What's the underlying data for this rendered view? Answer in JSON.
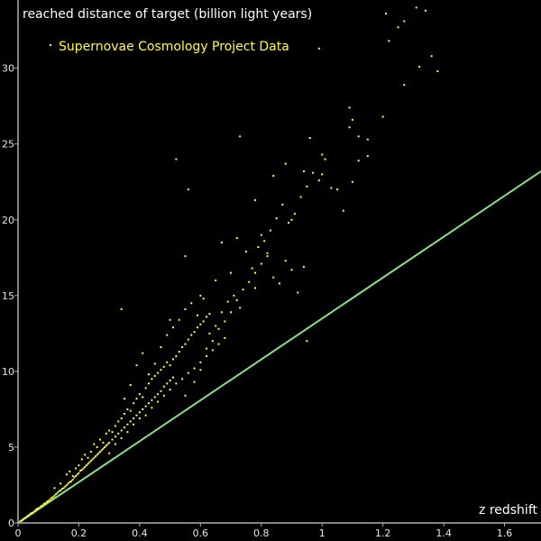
{
  "chart_data": {
    "type": "scatter",
    "title": "",
    "ylabel": "reached distance of target (billion light years)",
    "xlabel": "z redshift",
    "xlim": [
      0,
      1.72
    ],
    "ylim": [
      0,
      34.5
    ],
    "xticks": [
      0,
      0.2,
      0.4,
      0.6,
      0.8,
      1,
      1.2,
      1.4,
      1.6
    ],
    "yticks": [
      0,
      5,
      10,
      15,
      20,
      25,
      30
    ],
    "legend": {
      "text": "Supernovae Cosmology Project Data",
      "placement": "top-left"
    },
    "colors": {
      "points": "#ffff33",
      "reference_line": "#88e088",
      "axis": "#b0b0b0",
      "background": "#000000"
    },
    "series": [
      {
        "name": "Supernovae Cosmology Project Data",
        "kind": "points",
        "points": [
          [
            0.01,
            0.15
          ],
          [
            0.015,
            0.2
          ],
          [
            0.02,
            0.3
          ],
          [
            0.025,
            0.35
          ],
          [
            0.03,
            0.45
          ],
          [
            0.035,
            0.5
          ],
          [
            0.04,
            0.6
          ],
          [
            0.045,
            0.65
          ],
          [
            0.05,
            0.7
          ],
          [
            0.055,
            0.8
          ],
          [
            0.06,
            0.9
          ],
          [
            0.065,
            0.95
          ],
          [
            0.07,
            1.0
          ],
          [
            0.075,
            1.1
          ],
          [
            0.08,
            1.15
          ],
          [
            0.085,
            1.25
          ],
          [
            0.09,
            1.3
          ],
          [
            0.095,
            1.4
          ],
          [
            0.1,
            1.45
          ],
          [
            0.105,
            1.55
          ],
          [
            0.11,
            1.65
          ],
          [
            0.115,
            1.7
          ],
          [
            0.12,
            1.8
          ],
          [
            0.125,
            1.9
          ],
          [
            0.13,
            2.0
          ],
          [
            0.135,
            2.1
          ],
          [
            0.14,
            2.15
          ],
          [
            0.145,
            2.25
          ],
          [
            0.15,
            2.3
          ],
          [
            0.155,
            2.4
          ],
          [
            0.16,
            2.5
          ],
          [
            0.165,
            2.6
          ],
          [
            0.17,
            2.7
          ],
          [
            0.175,
            2.75
          ],
          [
            0.18,
            2.85
          ],
          [
            0.185,
            3.0
          ],
          [
            0.19,
            3.1
          ],
          [
            0.195,
            3.2
          ],
          [
            0.2,
            3.3
          ],
          [
            0.205,
            3.45
          ],
          [
            0.21,
            3.5
          ],
          [
            0.215,
            3.6
          ],
          [
            0.22,
            3.7
          ],
          [
            0.225,
            3.8
          ],
          [
            0.23,
            3.9
          ],
          [
            0.235,
            4.0
          ],
          [
            0.24,
            4.1
          ],
          [
            0.245,
            4.2
          ],
          [
            0.25,
            4.3
          ],
          [
            0.255,
            4.4
          ],
          [
            0.26,
            4.5
          ],
          [
            0.265,
            4.6
          ],
          [
            0.27,
            4.7
          ],
          [
            0.275,
            4.8
          ],
          [
            0.28,
            4.9
          ],
          [
            0.285,
            5.0
          ],
          [
            0.29,
            5.1
          ],
          [
            0.295,
            5.2
          ],
          [
            0.3,
            5.3
          ],
          [
            0.31,
            5.5
          ],
          [
            0.32,
            5.7
          ],
          [
            0.33,
            5.9
          ],
          [
            0.34,
            6.1
          ],
          [
            0.35,
            6.3
          ],
          [
            0.36,
            6.5
          ],
          [
            0.37,
            6.7
          ],
          [
            0.38,
            6.9
          ],
          [
            0.39,
            7.1
          ],
          [
            0.4,
            7.3
          ],
          [
            0.41,
            7.5
          ],
          [
            0.42,
            7.7
          ],
          [
            0.43,
            7.9
          ],
          [
            0.44,
            8.1
          ],
          [
            0.45,
            8.3
          ],
          [
            0.46,
            8.5
          ],
          [
            0.47,
            8.7
          ],
          [
            0.48,
            9.0
          ],
          [
            0.49,
            9.2
          ],
          [
            0.5,
            9.4
          ],
          [
            0.51,
            9.6
          ],
          [
            0.12,
            2.3
          ],
          [
            0.14,
            2.6
          ],
          [
            0.16,
            3.2
          ],
          [
            0.17,
            3.4
          ],
          [
            0.18,
            3.1
          ],
          [
            0.19,
            3.6
          ],
          [
            0.2,
            3.8
          ],
          [
            0.21,
            4.2
          ],
          [
            0.22,
            4.5
          ],
          [
            0.23,
            4.3
          ],
          [
            0.24,
            4.7
          ],
          [
            0.25,
            5.2
          ],
          [
            0.26,
            5.0
          ],
          [
            0.27,
            5.5
          ],
          [
            0.28,
            5.3
          ],
          [
            0.29,
            5.9
          ],
          [
            0.3,
            6.1
          ],
          [
            0.31,
            6.0
          ],
          [
            0.32,
            6.4
          ],
          [
            0.33,
            6.7
          ],
          [
            0.34,
            6.9
          ],
          [
            0.35,
            7.2
          ],
          [
            0.36,
            7.5
          ],
          [
            0.37,
            7.4
          ],
          [
            0.38,
            7.9
          ],
          [
            0.39,
            8.2
          ],
          [
            0.4,
            8.5
          ],
          [
            0.41,
            8.3
          ],
          [
            0.42,
            8.9
          ],
          [
            0.43,
            9.2
          ],
          [
            0.44,
            9.5
          ],
          [
            0.45,
            9.7
          ],
          [
            0.46,
            9.9
          ],
          [
            0.47,
            10.1
          ],
          [
            0.48,
            10.3
          ],
          [
            0.49,
            10.6
          ],
          [
            0.5,
            10.4
          ],
          [
            0.51,
            10.8
          ],
          [
            0.52,
            11.0
          ],
          [
            0.53,
            11.3
          ],
          [
            0.54,
            11.6
          ],
          [
            0.55,
            11.8
          ],
          [
            0.56,
            12.1
          ],
          [
            0.57,
            12.4
          ],
          [
            0.58,
            12.6
          ],
          [
            0.59,
            12.9
          ],
          [
            0.6,
            13.1
          ],
          [
            0.61,
            13.3
          ],
          [
            0.62,
            13.6
          ],
          [
            0.63,
            13.8
          ],
          [
            0.3,
            4.6
          ],
          [
            0.32,
            5.2
          ],
          [
            0.34,
            5.6
          ],
          [
            0.36,
            6.0
          ],
          [
            0.38,
            6.5
          ],
          [
            0.4,
            6.9
          ],
          [
            0.42,
            7.1
          ],
          [
            0.44,
            7.6
          ],
          [
            0.46,
            8.0
          ],
          [
            0.48,
            8.4
          ],
          [
            0.5,
            8.8
          ],
          [
            0.52,
            9.2
          ],
          [
            0.54,
            9.5
          ],
          [
            0.56,
            9.9
          ],
          [
            0.58,
            10.2
          ],
          [
            0.6,
            10.6
          ],
          [
            0.62,
            11.0
          ],
          [
            0.64,
            11.4
          ],
          [
            0.66,
            11.8
          ],
          [
            0.68,
            12.2
          ],
          [
            0.35,
            8.2
          ],
          [
            0.37,
            9.1
          ],
          [
            0.39,
            10.4
          ],
          [
            0.41,
            11.2
          ],
          [
            0.43,
            9.8
          ],
          [
            0.45,
            10.5
          ],
          [
            0.47,
            11.6
          ],
          [
            0.49,
            12.4
          ],
          [
            0.51,
            12.9
          ],
          [
            0.53,
            13.4
          ],
          [
            0.55,
            14.1
          ],
          [
            0.57,
            14.5
          ],
          [
            0.59,
            13.7
          ],
          [
            0.61,
            14.8
          ],
          [
            0.63,
            12.5
          ],
          [
            0.65,
            13.0
          ],
          [
            0.67,
            13.9
          ],
          [
            0.69,
            14.6
          ],
          [
            0.71,
            15.0
          ],
          [
            0.73,
            14.2
          ],
          [
            0.55,
            8.4
          ],
          [
            0.58,
            9.3
          ],
          [
            0.6,
            10.1
          ],
          [
            0.62,
            11.5
          ],
          [
            0.64,
            12.0
          ],
          [
            0.66,
            12.8
          ],
          [
            0.68,
            13.3
          ],
          [
            0.7,
            13.9
          ],
          [
            0.72,
            14.7
          ],
          [
            0.74,
            15.4
          ],
          [
            0.76,
            15.9
          ],
          [
            0.78,
            16.5
          ],
          [
            0.8,
            17.1
          ],
          [
            0.82,
            17.6
          ],
          [
            0.84,
            16.2
          ],
          [
            0.86,
            15.8
          ],
          [
            0.88,
            17.3
          ],
          [
            0.9,
            16.7
          ],
          [
            0.92,
            15.2
          ],
          [
            0.94,
            16.9
          ],
          [
            0.75,
            17.9
          ],
          [
            0.77,
            16.8
          ],
          [
            0.79,
            18.2
          ],
          [
            0.81,
            18.6
          ],
          [
            0.83,
            19.3
          ],
          [
            0.85,
            20.1
          ],
          [
            0.87,
            21.0
          ],
          [
            0.89,
            19.8
          ],
          [
            0.91,
            20.4
          ],
          [
            0.93,
            21.5
          ],
          [
            0.95,
            22.2
          ],
          [
            0.97,
            23.1
          ],
          [
            0.99,
            22.6
          ],
          [
            1.01,
            24.0
          ],
          [
            1.03,
            22.1
          ],
          [
            1.07,
            20.6
          ],
          [
            1.1,
            22.5
          ],
          [
            1.12,
            23.9
          ],
          [
            1.15,
            25.3
          ],
          [
            1.09,
            26.1
          ],
          [
            0.78,
            21.3
          ],
          [
            0.84,
            22.9
          ],
          [
            0.88,
            23.7
          ],
          [
            0.94,
            23.2
          ],
          [
            0.96,
            25.4
          ],
          [
            1.0,
            24.3
          ],
          [
            1.15,
            24.2
          ],
          [
            1.2,
            26.8
          ],
          [
            1.1,
            26.6
          ],
          [
            1.09,
            27.4
          ],
          [
            0.73,
            25.5
          ],
          [
            0.52,
            24.0
          ],
          [
            0.56,
            22.0
          ],
          [
            0.34,
            14.1
          ],
          [
            0.55,
            17.6
          ],
          [
            0.67,
            18.5
          ],
          [
            0.72,
            18.8
          ],
          [
            0.82,
            17.8
          ],
          [
            0.95,
            12.0
          ],
          [
            0.78,
            15.5
          ],
          [
            0.99,
            31.3
          ],
          [
            1.22,
            31.8
          ],
          [
            1.25,
            32.7
          ],
          [
            1.21,
            33.6
          ],
          [
            1.27,
            33.1
          ],
          [
            1.31,
            34.0
          ],
          [
            1.34,
            33.8
          ],
          [
            1.32,
            30.1
          ],
          [
            1.36,
            30.8
          ],
          [
            1.38,
            29.8
          ],
          [
            1.27,
            28.9
          ],
          [
            1.12,
            25.5
          ],
          [
            1.0,
            23.0
          ],
          [
            1.05,
            22.0
          ],
          [
            0.9,
            20.0
          ],
          [
            0.8,
            19.0
          ],
          [
            0.7,
            16.5
          ],
          [
            0.65,
            16.0
          ],
          [
            0.6,
            15.0
          ],
          [
            0.5,
            13.4
          ]
        ]
      },
      {
        "name": "",
        "kind": "line",
        "points": [
          [
            0,
            0
          ],
          [
            1.72,
            23.2
          ]
        ]
      }
    ]
  }
}
